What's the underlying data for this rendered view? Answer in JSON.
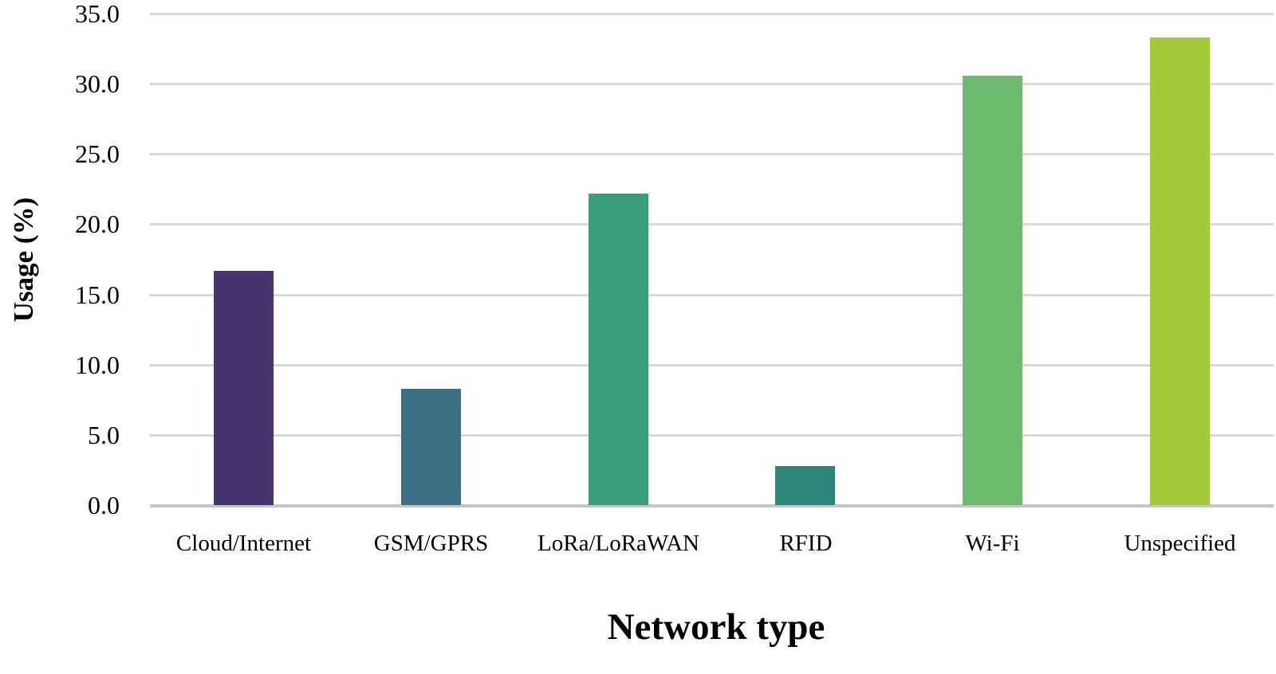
{
  "chart_data": {
    "type": "bar",
    "title": "",
    "xlabel": "Network type",
    "ylabel": "Usage (%)",
    "categories": [
      "Cloud/Internet",
      "GSM/GPRS",
      "LoRa/LoRaWAN",
      "RFID",
      "Wi-Fi",
      "Unspecified"
    ],
    "values": [
      16.7,
      8.3,
      22.2,
      2.8,
      30.6,
      33.3
    ],
    "bar_colors": [
      "#473570",
      "#3a6f85",
      "#3a9e7c",
      "#2f8578",
      "#6abb6d",
      "#a4ca3b"
    ],
    "ylim": [
      0,
      35
    ],
    "yticks": [
      0,
      5,
      10,
      15,
      20,
      25,
      30,
      35
    ],
    "ytick_labels": [
      "0.0",
      "5.0",
      "10.0",
      "15.0",
      "20.0",
      "25.0",
      "30.0",
      "35.0"
    ],
    "grid": true,
    "gridline_color": "#d9d9d9",
    "axis_line_color": "#c6c6c6",
    "background": "#ffffff",
    "legend_position": "none"
  }
}
